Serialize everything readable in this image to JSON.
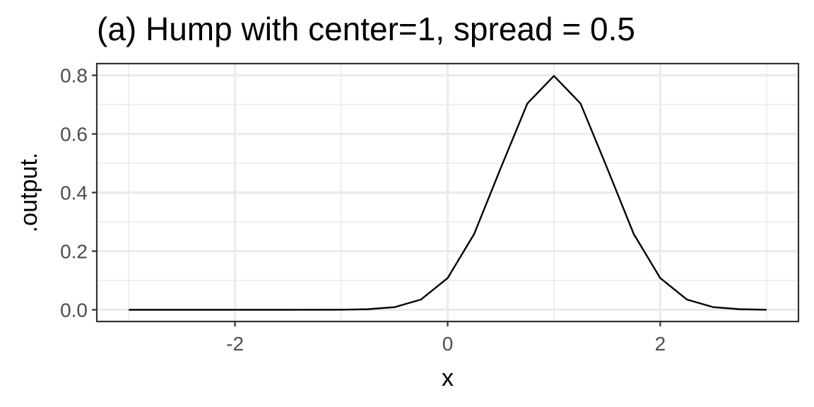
{
  "chart_data": {
    "type": "line",
    "title": "(a) Hump with center=1, spread = 0.5",
    "xlabel": "x",
    "ylabel": ".output.",
    "xlim": [
      -3.3,
      3.3
    ],
    "ylim": [
      -0.04,
      0.84
    ],
    "x_ticks": [
      -2,
      0,
      2
    ],
    "x_tick_labels": [
      "-2",
      "0",
      "2"
    ],
    "x_minor_ticks": [
      -3,
      -1,
      1,
      3
    ],
    "y_ticks": [
      0.0,
      0.2,
      0.4,
      0.6,
      0.8
    ],
    "y_tick_labels": [
      "0.0",
      "0.2",
      "0.4",
      "0.6",
      "0.8"
    ],
    "y_minor_ticks": [
      0.1,
      0.3,
      0.5,
      0.7
    ],
    "grid": true,
    "series": [
      {
        "color": "#000000",
        "x": [
          -3.0,
          -2.5,
          -2.0,
          -1.5,
          -1.0,
          -0.75,
          -0.5,
          -0.25,
          0.0,
          0.25,
          0.5,
          0.75,
          1.0,
          1.25,
          1.5,
          1.75,
          2.0,
          2.25,
          2.5,
          2.75,
          3.0
        ],
        "y": [
          0.0,
          0.0,
          0.0,
          0.0,
          0.0003,
          0.0019,
          0.0089,
          0.0351,
          0.108,
          0.259,
          0.484,
          0.704,
          0.798,
          0.704,
          0.484,
          0.259,
          0.108,
          0.0351,
          0.0089,
          0.0019,
          0.0003
        ]
      }
    ]
  }
}
